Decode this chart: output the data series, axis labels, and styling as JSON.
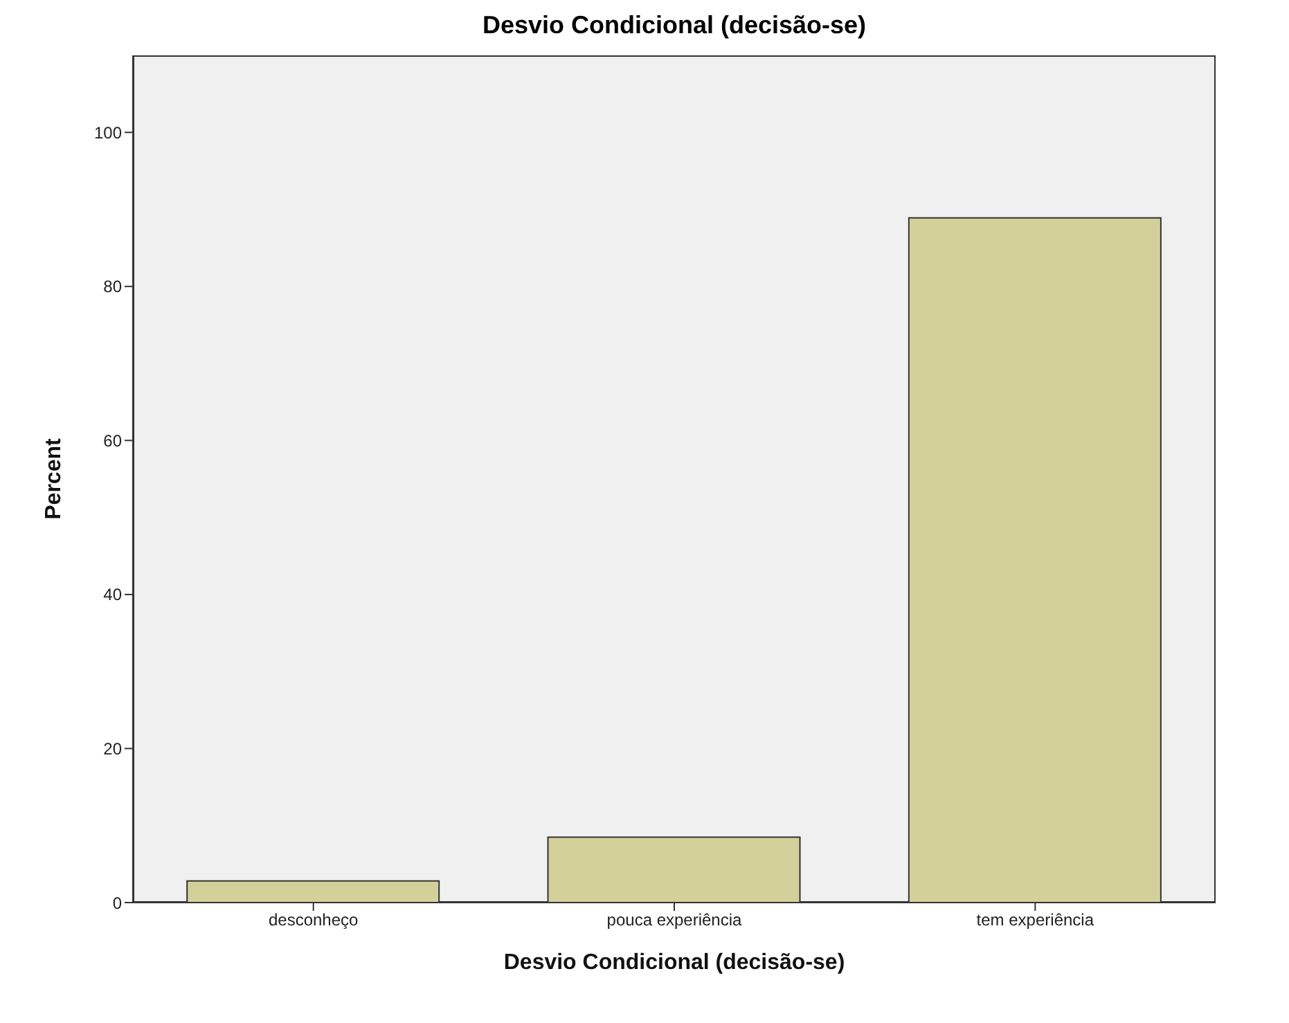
{
  "chart_data": {
    "type": "bar",
    "title": "Desvio Condicional (decisão-se)",
    "xlabel": "Desvio Condicional (decisão-se)",
    "ylabel": "Percent",
    "categories": [
      "desconheço",
      "pouca experiência",
      "tem experiência"
    ],
    "values": [
      2.8,
      8.5,
      88.9
    ],
    "color": "#d4d09a",
    "ylim": [
      0,
      110
    ],
    "yticks": [
      0,
      20,
      40,
      60,
      80,
      100
    ]
  }
}
